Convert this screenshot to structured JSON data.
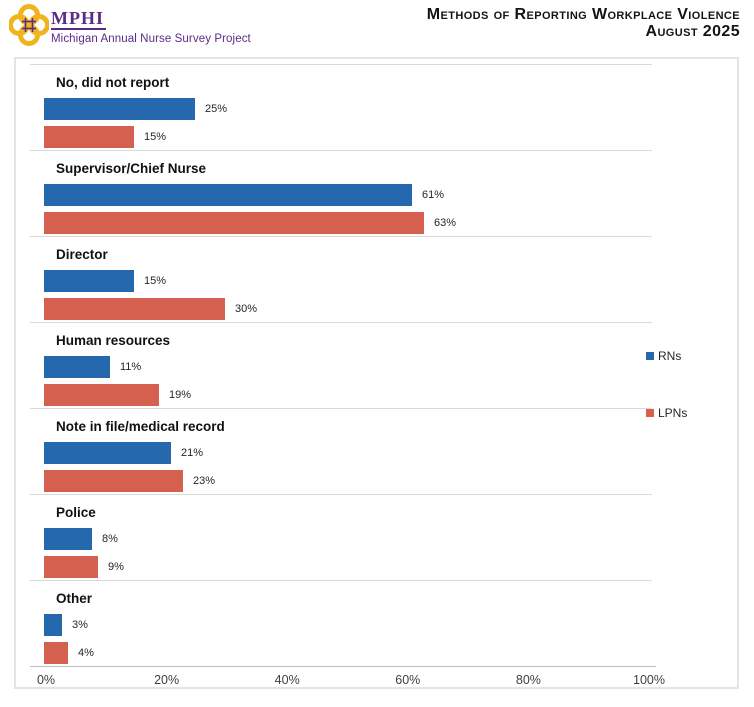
{
  "header": {
    "logo": {
      "acronym": "MPHI",
      "subtitle": "Michigan Annual Nurse Survey Project",
      "icon": "quatrefoil-knot-icon",
      "purple": "#5b2b87",
      "gold": "#f0b41e"
    },
    "title_line1": "Methods of Reporting Workplace Violence",
    "title_line2": "August 2025"
  },
  "chart_data": {
    "type": "bar",
    "orientation": "horizontal",
    "title": "Methods of Reporting Workplace Violence",
    "subtitle": "August 2025",
    "categories": [
      "No, did not report",
      "Supervisor/Chief Nurse",
      "Director",
      "Human resources",
      "Note in file/medical record",
      "Police",
      "Other"
    ],
    "series": [
      {
        "name": "RNs",
        "color": "#2568ae",
        "values": [
          25,
          61,
          15,
          11,
          21,
          8,
          3
        ]
      },
      {
        "name": "LPNs",
        "color": "#d5604f",
        "values": [
          15,
          63,
          30,
          19,
          23,
          9,
          4
        ]
      }
    ],
    "value_suffix": "%",
    "xlim": [
      0,
      100
    ],
    "x_ticks": [
      "0%",
      "20%",
      "40%",
      "60%",
      "80%",
      "100%"
    ],
    "legend_position": "right",
    "grid": "category-separator-lines"
  }
}
